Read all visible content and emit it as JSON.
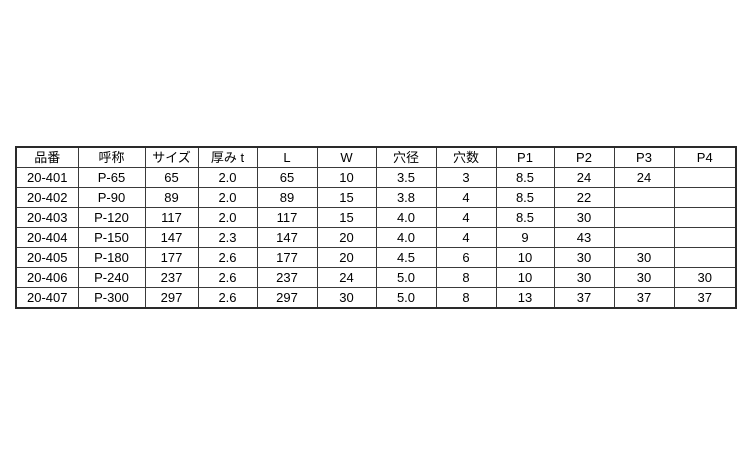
{
  "table": {
    "name": "product-spec-table",
    "headers": [
      "品番",
      "呼称",
      "サイズ",
      "厚み t",
      "L",
      "W",
      "穴径",
      "穴数",
      "P1",
      "P2",
      "P3",
      "P4"
    ],
    "rows": [
      [
        "20-401",
        "P-65",
        "65",
        "2.0",
        "65",
        "10",
        "3.5",
        "3",
        "8.5",
        "24",
        "24",
        ""
      ],
      [
        "20-402",
        "P-90",
        "89",
        "2.0",
        "89",
        "15",
        "3.8",
        "4",
        "8.5",
        "22",
        "",
        ""
      ],
      [
        "20-403",
        "P-120",
        "117",
        "2.0",
        "117",
        "15",
        "4.0",
        "4",
        "8.5",
        "30",
        "",
        ""
      ],
      [
        "20-404",
        "P-150",
        "147",
        "2.3",
        "147",
        "20",
        "4.0",
        "4",
        "9",
        "43",
        "",
        ""
      ],
      [
        "20-405",
        "P-180",
        "177",
        "2.6",
        "177",
        "20",
        "4.5",
        "6",
        "10",
        "30",
        "30",
        ""
      ],
      [
        "20-406",
        "P-240",
        "237",
        "2.6",
        "237",
        "24",
        "5.0",
        "8",
        "10",
        "30",
        "30",
        "30"
      ],
      [
        "20-407",
        "P-300",
        "297",
        "2.6",
        "297",
        "30",
        "5.0",
        "8",
        "13",
        "37",
        "37",
        "37"
      ]
    ]
  },
  "colors": {
    "background": "#ffffff",
    "border_outer": "#2a2a2a",
    "border_inner": "#3a3a3a",
    "text": "#000000"
  }
}
